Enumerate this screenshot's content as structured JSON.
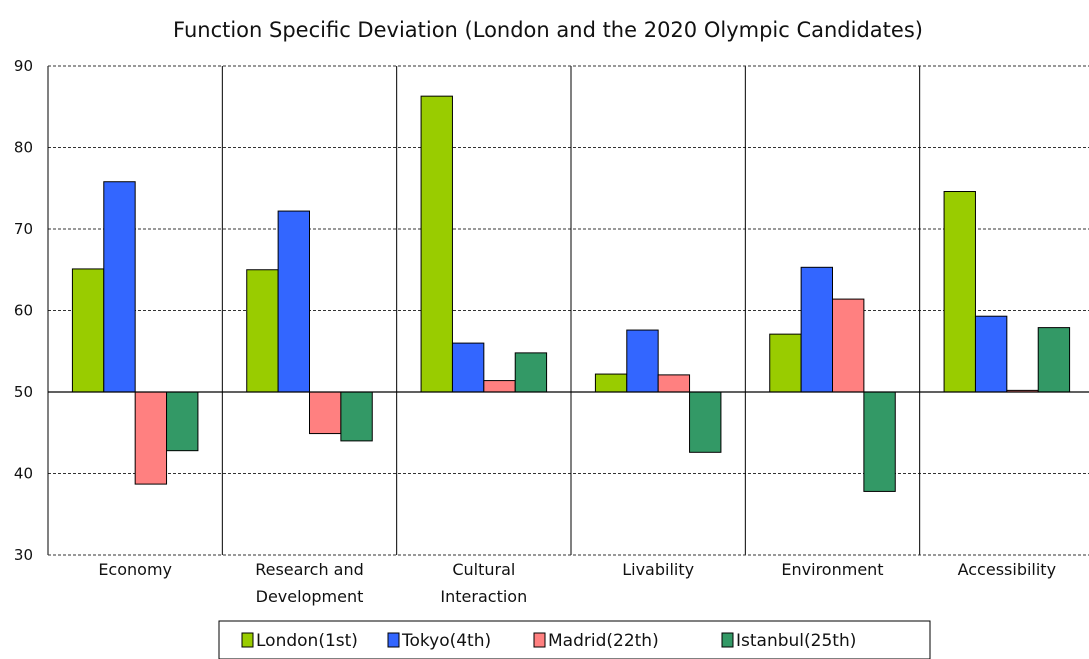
{
  "chart_data": {
    "type": "bar",
    "title": "Function Specific Deviation (London and the 2020 Olympic Candidates)",
    "xlabel": "",
    "ylabel": "",
    "ylim": [
      30,
      90
    ],
    "baseline": 50,
    "yticks": [
      30,
      40,
      50,
      60,
      70,
      80,
      90
    ],
    "categories": [
      [
        "Economy"
      ],
      [
        "Research and",
        "Development"
      ],
      [
        "Cultural",
        "Interaction"
      ],
      [
        "Livability"
      ],
      [
        "Environment"
      ],
      [
        "Accessibility"
      ]
    ],
    "series": [
      {
        "name": "London(1st)",
        "color": "#99cc00",
        "values": [
          65.1,
          65.0,
          86.3,
          52.2,
          57.1,
          74.6
        ]
      },
      {
        "name": "Tokyo(4th)",
        "color": "#3366ff",
        "values": [
          75.8,
          72.2,
          56.0,
          57.6,
          65.3,
          59.3
        ]
      },
      {
        "name": "Madrid(22th)",
        "color": "#ff8080",
        "values": [
          38.7,
          44.9,
          51.4,
          52.1,
          61.4,
          50.2
        ]
      },
      {
        "name": "Istanbul(25th)",
        "color": "#339966",
        "values": [
          42.8,
          44.0,
          54.8,
          42.6,
          37.8,
          57.9
        ]
      }
    ],
    "grid": true,
    "legend_position": "bottom"
  }
}
